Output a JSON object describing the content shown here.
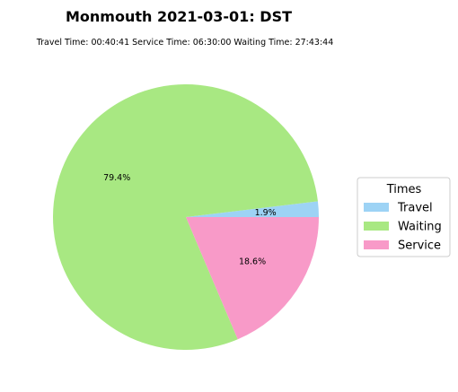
{
  "chart_data": {
    "type": "pie",
    "title": "Monmouth 2021-03-01: DST",
    "subtitle": "Travel Time: 00:40:41  Service Time: 06:30:00  Waiting Time: 27:43:44",
    "legend_title": "Times",
    "legend_position": "right",
    "slices": [
      {
        "label": "Travel",
        "value": 1.9,
        "pct_label": "1.9%",
        "color": "#9dd3f5"
      },
      {
        "label": "Waiting",
        "value": 79.4,
        "pct_label": "79.4%",
        "color": "#a8e882"
      },
      {
        "label": "Service",
        "value": 18.6,
        "pct_label": "18.6%",
        "color": "#f89ac8"
      }
    ]
  }
}
